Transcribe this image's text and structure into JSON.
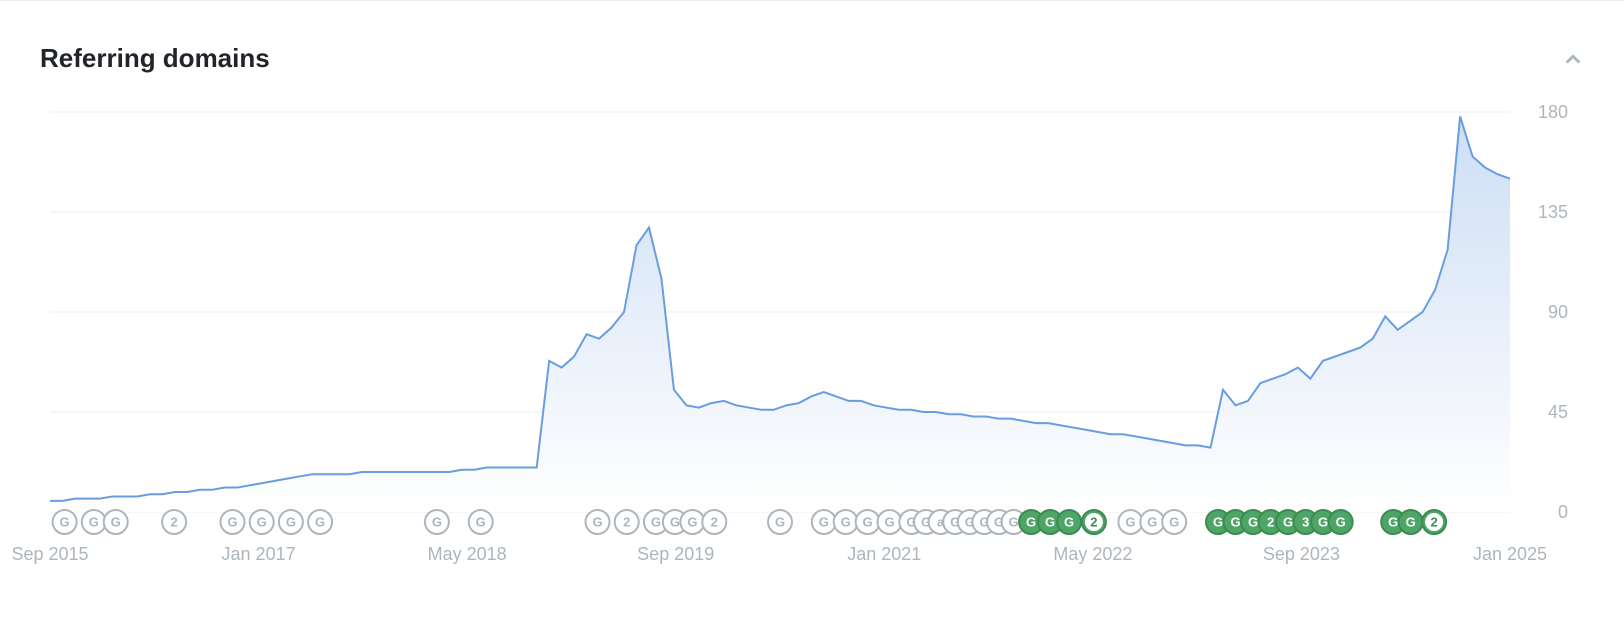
{
  "panel": {
    "title": "Referring domains",
    "collapse_icon": "chevron-up"
  },
  "chart": {
    "type": "area",
    "line_color": "#6a9ce0",
    "area_gradient_top": "#cddef5",
    "area_gradient_bottom": "#ffffff",
    "grid_color": "#e9ecef",
    "background": "#ffffff",
    "ylim": [
      0,
      180
    ],
    "yticks": [
      0,
      45,
      90,
      135,
      180
    ],
    "x_axis": {
      "range_months": [
        "2015-09",
        "2025-01"
      ],
      "tick_labels": [
        "Sep 2015",
        "Jan 2017",
        "May 2018",
        "Sep 2019",
        "Jan 2021",
        "May 2022",
        "Sep 2023",
        "Jan 2025"
      ]
    },
    "series": {
      "values": [
        5,
        5,
        6,
        6,
        6,
        7,
        7,
        7,
        8,
        8,
        9,
        9,
        10,
        10,
        11,
        11,
        12,
        13,
        14,
        15,
        16,
        17,
        17,
        17,
        17,
        18,
        18,
        18,
        18,
        18,
        18,
        18,
        18,
        19,
        19,
        20,
        20,
        20,
        20,
        20,
        68,
        65,
        70,
        80,
        78,
        83,
        90,
        120,
        128,
        105,
        55,
        48,
        47,
        49,
        50,
        48,
        47,
        46,
        46,
        48,
        49,
        52,
        54,
        52,
        50,
        50,
        48,
        47,
        46,
        46,
        45,
        45,
        44,
        44,
        43,
        43,
        42,
        42,
        41,
        40,
        40,
        39,
        38,
        37,
        36,
        35,
        35,
        34,
        33,
        32,
        31,
        30,
        30,
        29,
        55,
        48,
        50,
        58,
        60,
        62,
        65,
        60,
        68,
        70,
        72,
        74,
        78,
        88,
        82,
        86,
        90,
        100,
        118,
        178,
        160,
        155,
        152,
        150
      ]
    },
    "markers": {
      "outline": {
        "stroke": "#adb5bd",
        "fill": "#ffffff",
        "text_color": "#adb5bd"
      },
      "filled": {
        "stroke": "#3d8b52",
        "fill": "#4da667",
        "inner_fill": "#ffffff",
        "text_color": "#3d8b52"
      },
      "radius": 12,
      "items": [
        {
          "x": 0.01,
          "label": "G",
          "variant": "outline"
        },
        {
          "x": 0.03,
          "label": "G",
          "variant": "outline"
        },
        {
          "x": 0.045,
          "label": "G",
          "variant": "outline"
        },
        {
          "x": 0.085,
          "label": "2",
          "variant": "outline"
        },
        {
          "x": 0.125,
          "label": "G",
          "variant": "outline"
        },
        {
          "x": 0.145,
          "label": "G",
          "variant": "outline"
        },
        {
          "x": 0.165,
          "label": "G",
          "variant": "outline"
        },
        {
          "x": 0.185,
          "label": "G",
          "variant": "outline"
        },
        {
          "x": 0.265,
          "label": "G",
          "variant": "outline"
        },
        {
          "x": 0.295,
          "label": "G",
          "variant": "outline"
        },
        {
          "x": 0.375,
          "label": "G",
          "variant": "outline"
        },
        {
          "x": 0.395,
          "label": "2",
          "variant": "outline"
        },
        {
          "x": 0.415,
          "label": "G",
          "variant": "outline"
        },
        {
          "x": 0.428,
          "label": "G",
          "variant": "outline"
        },
        {
          "x": 0.44,
          "label": "G",
          "variant": "outline"
        },
        {
          "x": 0.455,
          "label": "2",
          "variant": "outline"
        },
        {
          "x": 0.5,
          "label": "G",
          "variant": "outline"
        },
        {
          "x": 0.53,
          "label": "G",
          "variant": "outline"
        },
        {
          "x": 0.545,
          "label": "G",
          "variant": "outline"
        },
        {
          "x": 0.56,
          "label": "G",
          "variant": "outline"
        },
        {
          "x": 0.575,
          "label": "G",
          "variant": "outline"
        },
        {
          "x": 0.59,
          "label": "G",
          "variant": "outline"
        },
        {
          "x": 0.6,
          "label": "G",
          "variant": "outline"
        },
        {
          "x": 0.61,
          "label": "a",
          "variant": "outline"
        },
        {
          "x": 0.62,
          "label": "G",
          "variant": "outline"
        },
        {
          "x": 0.63,
          "label": "G",
          "variant": "outline"
        },
        {
          "x": 0.64,
          "label": "G",
          "variant": "outline"
        },
        {
          "x": 0.65,
          "label": "G",
          "variant": "outline"
        },
        {
          "x": 0.66,
          "label": "G",
          "variant": "outline"
        },
        {
          "x": 0.672,
          "label": "G",
          "variant": "filled"
        },
        {
          "x": 0.685,
          "label": "G",
          "variant": "filled"
        },
        {
          "x": 0.698,
          "label": "G",
          "variant": "filled"
        },
        {
          "x": 0.715,
          "label": "2",
          "variant": "filled_inner"
        },
        {
          "x": 0.74,
          "label": "G",
          "variant": "outline"
        },
        {
          "x": 0.755,
          "label": "G",
          "variant": "outline"
        },
        {
          "x": 0.77,
          "label": "G",
          "variant": "outline"
        },
        {
          "x": 0.8,
          "label": "G",
          "variant": "filled"
        },
        {
          "x": 0.812,
          "label": "G",
          "variant": "filled"
        },
        {
          "x": 0.824,
          "label": "G",
          "variant": "filled"
        },
        {
          "x": 0.836,
          "label": "2",
          "variant": "filled"
        },
        {
          "x": 0.848,
          "label": "G",
          "variant": "filled"
        },
        {
          "x": 0.86,
          "label": "3",
          "variant": "filled"
        },
        {
          "x": 0.872,
          "label": "G",
          "variant": "filled"
        },
        {
          "x": 0.884,
          "label": "G",
          "variant": "filled"
        },
        {
          "x": 0.92,
          "label": "G",
          "variant": "filled"
        },
        {
          "x": 0.932,
          "label": "G",
          "variant": "filled"
        },
        {
          "x": 0.948,
          "label": "2",
          "variant": "filled_inner"
        }
      ]
    }
  }
}
